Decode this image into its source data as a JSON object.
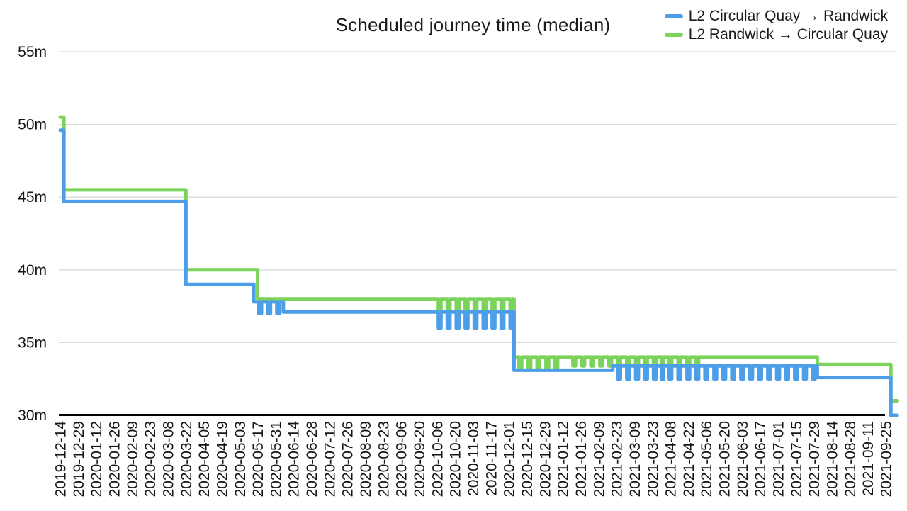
{
  "chart_data": {
    "type": "line",
    "title": "Scheduled journey time (median)",
    "xlabel": "",
    "ylabel": "",
    "unit": "minutes",
    "ylim": [
      30,
      55
    ],
    "grid": "horizontal",
    "legend_position": "top-right",
    "line_style": "step",
    "axis_color": "#000000",
    "gridline_color": "#d9d9d9",
    "y_ticks": [
      {
        "value": 55,
        "label": "55m"
      },
      {
        "value": 50,
        "label": "50m"
      },
      {
        "value": 45,
        "label": "45m"
      },
      {
        "value": 40,
        "label": "40m"
      },
      {
        "value": 35,
        "label": "35m"
      },
      {
        "value": 30,
        "label": "30m"
      }
    ],
    "x_tick_labels": [
      "2019-12-14",
      "2019-12-29",
      "2020-01-12",
      "2020-01-26",
      "2020-02-09",
      "2020-02-23",
      "2020-03-08",
      "2020-03-22",
      "2020-04-05",
      "2020-04-19",
      "2020-05-03",
      "2020-05-17",
      "2020-05-31",
      "2020-06-14",
      "2020-06-28",
      "2020-07-12",
      "2020-07-26",
      "2020-08-09",
      "2020-08-23",
      "2020-09-06",
      "2020-09-20",
      "2020-10-06",
      "2020-10-20",
      "2020-11-03",
      "2020-11-17",
      "2020-12-01",
      "2020-12-15",
      "2020-12-29",
      "2021-01-12",
      "2021-01-26",
      "2021-02-09",
      "2021-02-23",
      "2021-03-09",
      "2021-03-23",
      "2021-04-08",
      "2021-04-22",
      "2021-05-06",
      "2021-05-20",
      "2021-06-03",
      "2021-06-17",
      "2021-07-01",
      "2021-07-15",
      "2021-07-29",
      "2021-08-14",
      "2021-08-28",
      "2021-09-11",
      "2021-09-25"
    ],
    "series": [
      {
        "id": "circular-quay-to-randwick",
        "name": "L2 Circular Quay → Randwick",
        "color": "#4D9EE9",
        "draw_order": 2,
        "segments": [
          {
            "from": "2019-12-14",
            "to": "2019-12-17",
            "value": 49.6
          },
          {
            "from": "2019-12-17",
            "to": "2020-03-22",
            "value": 44.7
          },
          {
            "from": "2020-03-22",
            "to": "2020-05-14",
            "value": 39.0
          },
          {
            "from": "2020-05-14",
            "to": "2020-06-06",
            "value": 37.8,
            "dip": 37.0,
            "dip_period_days": 7
          },
          {
            "from": "2020-06-06",
            "to": "2020-10-03",
            "value": 37.1
          },
          {
            "from": "2020-10-03",
            "to": "2020-12-05",
            "value": 37.1,
            "dip": 36.0,
            "dip_period_days": 7
          },
          {
            "from": "2020-12-05",
            "to": "2021-02-20",
            "value": 33.1
          },
          {
            "from": "2021-02-20",
            "to": "2021-08-01",
            "value": 33.4,
            "dip": 32.5,
            "dip_period_days": 7
          },
          {
            "from": "2021-08-01",
            "to": "2021-09-29",
            "value": 32.6
          },
          {
            "from": "2021-09-29",
            "to": "2021-10-04",
            "value": 30.0
          }
        ]
      },
      {
        "id": "randwick-to-circular-quay",
        "name": "L2 Randwick → Circular Quay",
        "color": "#7BD35B",
        "draw_order": 1,
        "segments": [
          {
            "from": "2019-12-14",
            "to": "2019-12-17",
            "value": 50.5
          },
          {
            "from": "2019-12-17",
            "to": "2020-03-22",
            "value": 45.5
          },
          {
            "from": "2020-03-22",
            "to": "2020-05-17",
            "value": 40.0
          },
          {
            "from": "2020-05-17",
            "to": "2020-10-03",
            "value": 38.0
          },
          {
            "from": "2020-10-03",
            "to": "2020-12-05",
            "value": 38.0,
            "dip": 37.3,
            "dip_period_days": 7
          },
          {
            "from": "2020-12-05",
            "to": "2021-01-09",
            "value": 34.0,
            "dip": 33.2,
            "dip_period_days": 7
          },
          {
            "from": "2021-01-09",
            "to": "2021-01-16",
            "value": 34.0
          },
          {
            "from": "2021-01-16",
            "to": "2021-05-01",
            "value": 34.0,
            "dip": 33.4,
            "dip_period_days": 7
          },
          {
            "from": "2021-05-01",
            "to": "2021-08-01",
            "value": 34.0
          },
          {
            "from": "2021-08-01",
            "to": "2021-09-29",
            "value": 33.5
          },
          {
            "from": "2021-09-29",
            "to": "2021-10-04",
            "value": 31.0
          }
        ]
      }
    ]
  }
}
